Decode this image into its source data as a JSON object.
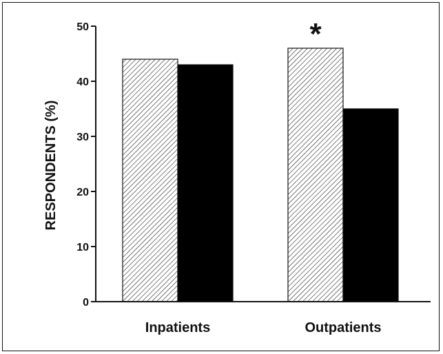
{
  "chart_data": {
    "type": "bar",
    "categories": [
      "Inpatients",
      "Outpatients"
    ],
    "series": [
      {
        "values": [
          44,
          46
        ],
        "fill": "hatched"
      },
      {
        "values": [
          43,
          35
        ],
        "fill": "solid-black"
      }
    ],
    "ylabel": "RESPONDENTS (%)",
    "xlabel": "",
    "ylim": [
      0,
      50
    ],
    "yticks": [
      0,
      10,
      20,
      30,
      40,
      50
    ],
    "grid": false,
    "legend": "none",
    "annotations": [
      {
        "text": "*",
        "category": "Outpatients",
        "series": 0
      }
    ],
    "colors": {
      "solid": "#000000",
      "hatch": "#111111",
      "axis": "#111111"
    }
  }
}
